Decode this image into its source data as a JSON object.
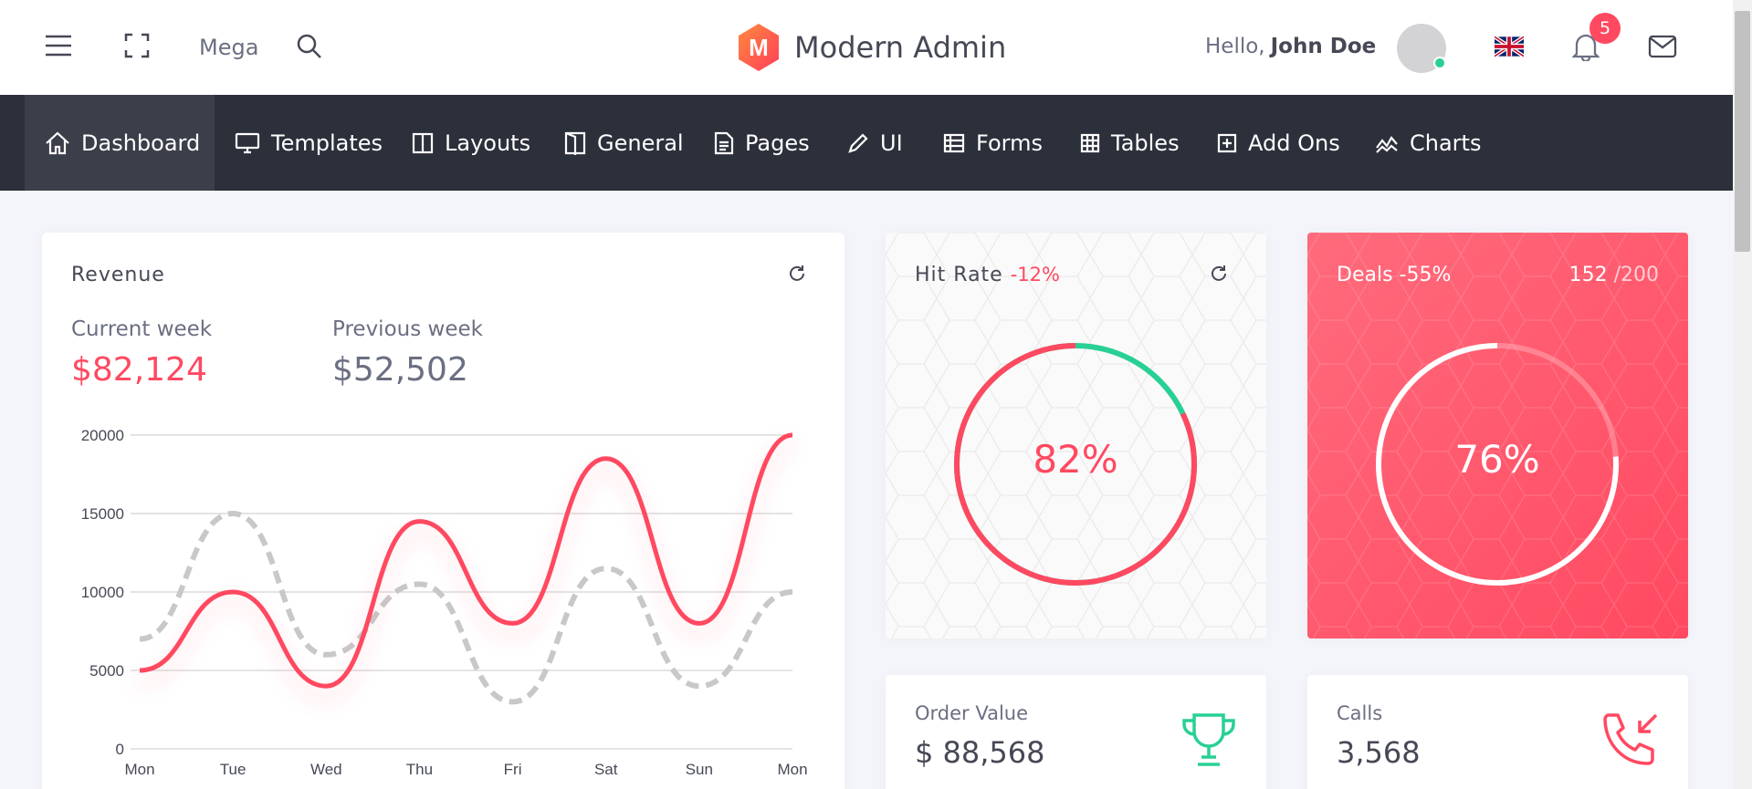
{
  "header": {
    "mega_label": "Mega",
    "brand_letter": "M",
    "brand_name": "Modern Admin",
    "hello": "Hello,",
    "user_name": "John Doe",
    "notification_count": "5"
  },
  "nav": {
    "items": [
      {
        "label": "Dashboard",
        "icon": "home-icon"
      },
      {
        "label": "Templates",
        "icon": "monitor-icon"
      },
      {
        "label": "Layouts",
        "icon": "layout-icon"
      },
      {
        "label": "General",
        "icon": "door-icon"
      },
      {
        "label": "Pages",
        "icon": "document-icon"
      },
      {
        "label": "UI",
        "icon": "pencil-icon"
      },
      {
        "label": "Forms",
        "icon": "form-icon"
      },
      {
        "label": "Tables",
        "icon": "grid-icon"
      },
      {
        "label": "Add Ons",
        "icon": "plus-square-icon"
      },
      {
        "label": "Charts",
        "icon": "chart-line-icon"
      }
    ]
  },
  "revenue": {
    "title": "Revenue",
    "current_label": "Current week",
    "current_value": "$82,124",
    "previous_label": "Previous week",
    "previous_value": "$52,502"
  },
  "chart_data": {
    "type": "line",
    "categories": [
      "Mon",
      "Tue",
      "Wed",
      "Thu",
      "Fri",
      "Sat",
      "Sun",
      "Mon"
    ],
    "series": [
      {
        "values": [
          5000,
          10000,
          4000,
          14500,
          8000,
          18500,
          8000,
          20000
        ],
        "color": "#ff4961",
        "style": "solid"
      },
      {
        "values": [
          7000,
          15000,
          6000,
          10500,
          3000,
          11500,
          4000,
          10000
        ],
        "color": "#c8c8c8",
        "style": "dashed"
      }
    ],
    "yticks": [
      "20000",
      "15000",
      "10000",
      "5000",
      "0"
    ],
    "ylim": [
      0,
      20000
    ],
    "grid": true
  },
  "hit_rate": {
    "title": "Hit Rate",
    "change": "-12%",
    "percent_label": "82%",
    "fraction": 0.82
  },
  "deals": {
    "title": "Deals -55%",
    "count": "152",
    "total": "/200",
    "percent_label": "76%",
    "fraction": 0.76
  },
  "order_value": {
    "label": "Order Value",
    "value": "$ 88,568"
  },
  "calls": {
    "label": "Calls",
    "value": "3,568"
  },
  "colors": {
    "accent": "#ff4961",
    "success": "#28d094",
    "nav_bg": "#2c303b"
  }
}
